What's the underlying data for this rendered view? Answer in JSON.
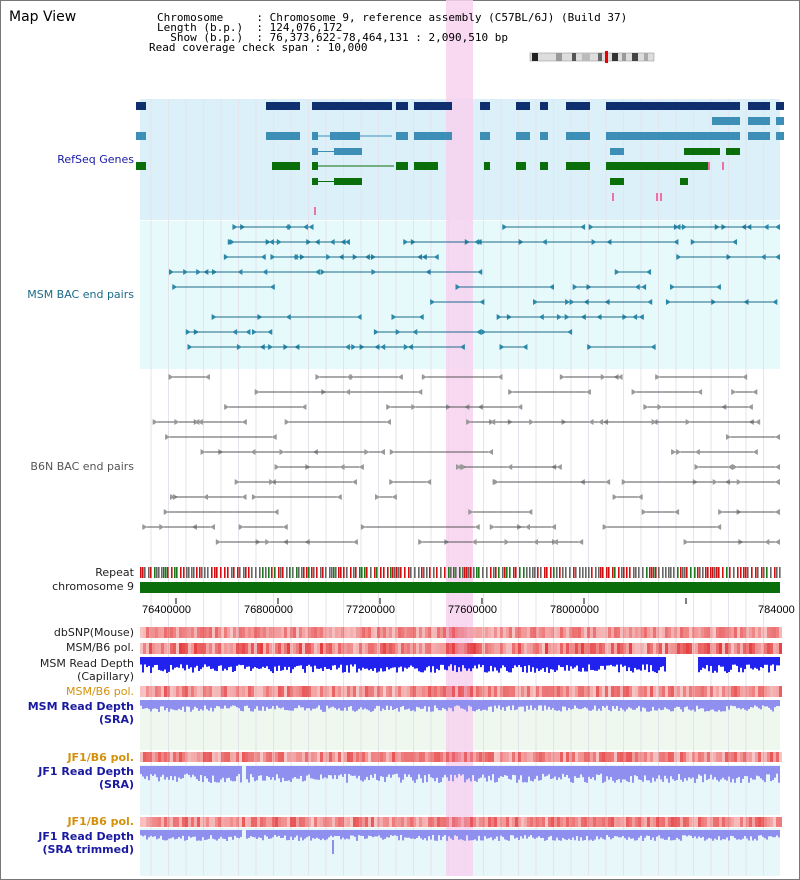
{
  "header": {
    "title": "Map View",
    "info_lines": [
      "Chromosome     : Chromosome 9, reference assembly (C57BL/6J) (Build 37)",
      "Length (b.p.)  : 124,076,172",
      "  Show (b.p.)  : 76,373,622-78,464,131 : 2,090,510 bp",
      "Read coverage check span : 10,000"
    ]
  },
  "colors": {
    "refseq_bg": "#dcf0fa",
    "msm_bg": "#e6f9fb",
    "highlight": "#f7d2ef",
    "refseq_dark": "#0f2f6e",
    "refseq_mid": "#3e8fb8",
    "refseq_green": "#0a6e0a",
    "bac": "#1a6a8a",
    "b6n": "#555555",
    "chrom_bar": "#0a6e0a",
    "depth_blue": "#2222ee",
    "depth_light": "#8f8fef",
    "sra_bg": "#eef8ee",
    "jf1_bg": "#e8f8fa"
  },
  "tracks": {
    "refseq": "RefSeq Genes",
    "msm_bac": "MSM BAC end pairs",
    "b6n_bac": "B6N BAC end pairs",
    "repeat": "Repeat",
    "chromosome": "chromosome 9",
    "dbsnp": "dbSNP(Mouse)",
    "msm_b6_pol_1": "MSM/B6 pol.",
    "msm_read_depth_cap": [
      "MSM Read Depth",
      "(Capillary)"
    ],
    "msm_b6_pol_2": "MSM/B6 pol.",
    "msm_read_depth_sra": [
      "MSM Read Depth",
      "(SRA)"
    ],
    "jf1_b6_pol_1": "JF1/B6 pol.",
    "jf1_read_depth_sra": [
      "JF1 Read Depth",
      "(SRA)"
    ],
    "jf1_b6_pol_2": "JF1/B6 pol.",
    "jf1_read_depth_trim": [
      "JF1 Read Depth",
      "(SRA trimmed)"
    ]
  },
  "axis": {
    "ticks": [
      "76400000",
      "76800000",
      "77200000",
      "77600000",
      "78000000",
      "784000"
    ]
  },
  "label_colors": {
    "refseq": "#1a1aa0",
    "msm_bac": "#1a6a8a",
    "b6n_bac": "#555555",
    "normal": "#222222",
    "orange": "#d4900a",
    "blue": "#1a1aa0"
  }
}
